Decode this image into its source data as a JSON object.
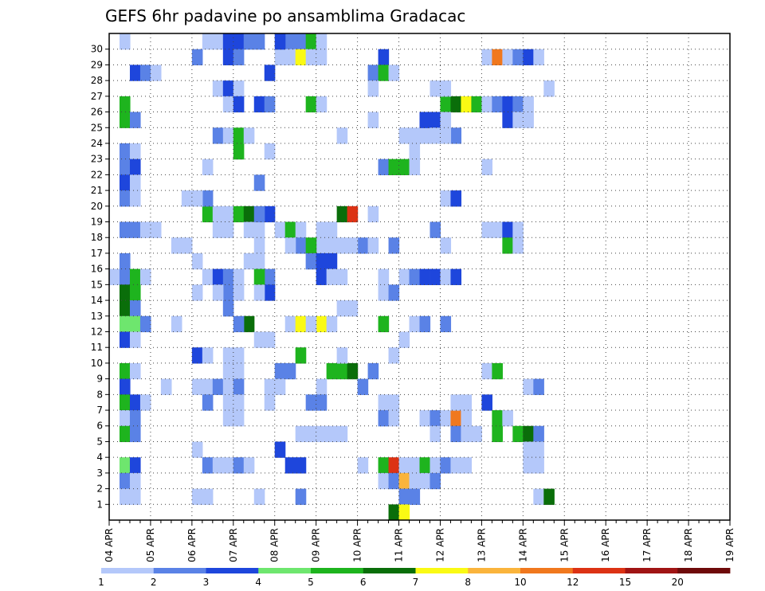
{
  "chart_data": {
    "type": "heatmap",
    "title": "GEFS 6hr padavine po ansamblima Gradacac",
    "x_tick_labels": [
      "04 APR",
      "05 APR",
      "06 APR",
      "07 APR",
      "08 APR",
      "09 APR",
      "10 APR",
      "11 APR",
      "12 APR",
      "13 APR",
      "14 APR",
      "15 APR",
      "16 APR",
      "17 APR",
      "18 APR",
      "19 APR"
    ],
    "y_tick_labels": [
      "1",
      "2",
      "3",
      "4",
      "5",
      "6",
      "7",
      "8",
      "9",
      "10",
      "11",
      "12",
      "13",
      "14",
      "15",
      "16",
      "17",
      "18",
      "19",
      "20",
      "21",
      "22",
      "23",
      "24",
      "25",
      "26",
      "27",
      "28",
      "29",
      "30"
    ],
    "y_range": [
      1,
      30
    ],
    "time_steps_per_day": 4,
    "grid": true,
    "legend": {
      "placement": "bottom",
      "labels": [
        "1",
        "2",
        "3",
        "4",
        "5",
        "6",
        "7",
        "8",
        "10",
        "12",
        "15",
        "20"
      ],
      "colors": [
        "#b4c8fa",
        "#5a82e6",
        "#1e46dc",
        "#6ee66e",
        "#1eb41e",
        "#0a6e0a",
        "#fafa14",
        "#fab43c",
        "#f0781e",
        "#dc3214",
        "#a01414",
        "#6e0a0a"
      ]
    },
    "cells_key": [
      "time_step",
      "member",
      "color_index"
    ],
    "cells": [
      [
        1,
        30,
        0
      ],
      [
        2,
        28,
        2
      ],
      [
        3,
        28,
        1
      ],
      [
        4,
        28,
        0
      ],
      [
        1,
        26,
        4
      ],
      [
        1,
        25,
        4
      ],
      [
        2,
        25,
        1
      ],
      [
        1,
        23,
        1
      ],
      [
        2,
        23,
        0
      ],
      [
        1,
        22,
        1
      ],
      [
        2,
        22,
        2
      ],
      [
        1,
        21,
        2
      ],
      [
        2,
        21,
        0
      ],
      [
        1,
        20,
        1
      ],
      [
        2,
        20,
        0
      ],
      [
        1,
        18,
        1
      ],
      [
        2,
        18,
        1
      ],
      [
        3,
        18,
        0
      ],
      [
        4,
        18,
        0
      ],
      [
        1,
        16,
        1
      ],
      [
        0,
        15,
        0
      ],
      [
        1,
        15,
        1
      ],
      [
        2,
        15,
        4
      ],
      [
        3,
        15,
        0
      ],
      [
        1,
        14,
        5
      ],
      [
        2,
        14,
        4
      ],
      [
        1,
        13,
        5
      ],
      [
        2,
        13,
        1
      ],
      [
        1,
        12,
        3
      ],
      [
        2,
        12,
        3
      ],
      [
        3,
        12,
        1
      ],
      [
        1,
        11,
        2
      ],
      [
        2,
        11,
        0
      ],
      [
        1,
        9,
        4
      ],
      [
        2,
        9,
        0
      ],
      [
        1,
        8,
        2
      ],
      [
        1,
        7,
        4
      ],
      [
        2,
        7,
        2
      ],
      [
        3,
        7,
        0
      ],
      [
        1,
        6,
        0
      ],
      [
        2,
        6,
        1
      ],
      [
        1,
        5,
        4
      ],
      [
        2,
        5,
        1
      ],
      [
        1,
        3,
        3
      ],
      [
        2,
        3,
        2
      ],
      [
        1,
        2,
        1
      ],
      [
        2,
        2,
        0
      ],
      [
        1,
        1,
        0
      ],
      [
        2,
        1,
        0
      ],
      [
        9,
        30,
        0
      ],
      [
        10,
        30,
        0
      ],
      [
        11,
        30,
        2
      ],
      [
        12,
        30,
        2
      ],
      [
        13,
        30,
        1
      ],
      [
        8,
        29,
        1
      ],
      [
        11,
        29,
        2
      ],
      [
        12,
        29,
        1
      ],
      [
        10,
        27,
        0
      ],
      [
        11,
        27,
        2
      ],
      [
        12,
        27,
        0
      ],
      [
        11,
        26,
        0
      ],
      [
        12,
        26,
        2
      ],
      [
        10,
        24,
        1
      ],
      [
        11,
        24,
        0
      ],
      [
        12,
        24,
        4
      ],
      [
        12,
        23,
        4
      ],
      [
        9,
        22,
        0
      ],
      [
        11,
        19,
        0
      ],
      [
        9,
        19,
        4
      ],
      [
        10,
        19,
        0
      ],
      [
        11,
        18,
        0
      ],
      [
        10,
        18,
        0
      ],
      [
        12,
        19,
        4
      ],
      [
        13,
        19,
        5
      ],
      [
        9,
        20,
        1
      ],
      [
        8,
        20,
        0
      ],
      [
        7,
        20,
        0
      ],
      [
        8,
        16,
        0
      ],
      [
        9,
        15,
        0
      ],
      [
        10,
        15,
        2
      ],
      [
        11,
        15,
        1
      ],
      [
        12,
        15,
        0
      ],
      [
        11,
        14,
        1
      ],
      [
        8,
        14,
        0
      ],
      [
        10,
        14,
        0
      ],
      [
        12,
        14,
        0
      ],
      [
        11,
        13,
        1
      ],
      [
        6,
        12,
        0
      ],
      [
        13,
        12,
        5
      ],
      [
        12,
        12,
        1
      ],
      [
        8,
        10,
        2
      ],
      [
        9,
        10,
        0
      ],
      [
        11,
        10,
        0
      ],
      [
        12,
        10,
        0
      ],
      [
        11,
        9,
        0
      ],
      [
        12,
        9,
        0
      ],
      [
        8,
        8,
        0
      ],
      [
        9,
        8,
        0
      ],
      [
        10,
        8,
        1
      ],
      [
        11,
        8,
        0
      ],
      [
        12,
        8,
        1
      ],
      [
        9,
        7,
        1
      ],
      [
        11,
        7,
        0
      ],
      [
        12,
        7,
        0
      ],
      [
        11,
        6,
        0
      ],
      [
        12,
        6,
        0
      ],
      [
        8,
        4,
        0
      ],
      [
        9,
        3,
        1
      ],
      [
        10,
        3,
        0
      ],
      [
        11,
        3,
        0
      ],
      [
        12,
        3,
        1
      ],
      [
        13,
        3,
        0
      ],
      [
        8,
        1,
        0
      ],
      [
        9,
        1,
        0
      ],
      [
        7,
        17,
        0
      ],
      [
        6,
        17,
        0
      ],
      [
        5,
        8,
        0
      ],
      [
        14,
        30,
        1
      ],
      [
        16,
        29,
        0
      ],
      [
        15,
        28,
        2
      ],
      [
        14,
        26,
        2
      ],
      [
        15,
        26,
        1
      ],
      [
        13,
        24,
        0
      ],
      [
        15,
        23,
        0
      ],
      [
        14,
        21,
        1
      ],
      [
        13,
        18,
        0
      ],
      [
        14,
        18,
        0
      ],
      [
        14,
        17,
        0
      ],
      [
        14,
        16,
        0
      ],
      [
        13,
        16,
        0
      ],
      [
        15,
        19,
        2
      ],
      [
        14,
        19,
        1
      ],
      [
        16,
        18,
        0
      ],
      [
        17,
        18,
        4
      ],
      [
        18,
        18,
        0
      ],
      [
        15,
        15,
        1
      ],
      [
        14,
        15,
        4
      ],
      [
        15,
        14,
        2
      ],
      [
        14,
        14,
        0
      ],
      [
        14,
        11,
        0
      ],
      [
        15,
        11,
        0
      ],
      [
        17,
        12,
        0
      ],
      [
        18,
        12,
        6
      ],
      [
        16,
        9,
        1
      ],
      [
        17,
        9,
        1
      ],
      [
        15,
        8,
        0
      ],
      [
        16,
        8,
        0
      ],
      [
        15,
        7,
        0
      ],
      [
        16,
        4,
        2
      ],
      [
        17,
        3,
        2
      ],
      [
        18,
        3,
        2
      ],
      [
        14,
        1,
        0
      ],
      [
        18,
        1,
        1
      ],
      [
        18,
        17,
        1
      ],
      [
        19,
        16,
        0
      ],
      [
        17,
        17,
        0
      ],
      [
        20,
        17,
        0
      ],
      [
        21,
        17,
        0
      ],
      [
        21,
        18,
        0
      ],
      [
        20,
        18,
        0
      ],
      [
        19,
        17,
        4
      ],
      [
        19,
        16,
        1
      ],
      [
        20,
        16,
        2
      ],
      [
        21,
        16,
        2
      ],
      [
        20,
        15,
        2
      ],
      [
        21,
        15,
        0
      ],
      [
        22,
        15,
        0
      ],
      [
        22,
        17,
        0
      ],
      [
        20,
        12,
        6
      ],
      [
        19,
        12,
        0
      ],
      [
        18,
        10,
        4
      ],
      [
        21,
        9,
        4
      ],
      [
        20,
        8,
        0
      ],
      [
        19,
        7,
        1
      ],
      [
        20,
        7,
        1
      ],
      [
        18,
        5,
        0
      ],
      [
        19,
        5,
        0
      ],
      [
        20,
        5,
        0
      ],
      [
        21,
        5,
        0
      ],
      [
        22,
        5,
        0
      ],
      [
        24,
        3,
        0
      ],
      [
        17,
        30,
        1
      ],
      [
        18,
        30,
        1
      ],
      [
        19,
        30,
        4
      ],
      [
        20,
        30,
        0
      ],
      [
        16,
        30,
        2
      ],
      [
        17,
        29,
        0
      ],
      [
        18,
        29,
        6
      ],
      [
        19,
        29,
        0
      ],
      [
        20,
        29,
        0
      ],
      [
        19,
        26,
        4
      ],
      [
        20,
        26,
        0
      ],
      [
        22,
        24,
        0
      ],
      [
        24,
        17,
        1
      ],
      [
        25,
        17,
        0
      ],
      [
        23,
        17,
        0
      ],
      [
        22,
        19,
        5
      ],
      [
        23,
        19,
        9
      ],
      [
        25,
        19,
        0
      ],
      [
        22,
        9,
        4
      ],
      [
        23,
        9,
        5
      ],
      [
        22,
        10,
        0
      ],
      [
        21,
        12,
        0
      ],
      [
        25,
        9,
        1
      ],
      [
        24,
        8,
        1
      ],
      [
        22,
        13,
        0
      ],
      [
        23,
        13,
        0
      ],
      [
        26,
        14,
        0
      ],
      [
        27,
        14,
        1
      ],
      [
        26,
        15,
        0
      ],
      [
        26,
        29,
        2
      ],
      [
        25,
        28,
        1
      ],
      [
        26,
        28,
        4
      ],
      [
        27,
        28,
        0
      ],
      [
        25,
        27,
        0
      ],
      [
        25,
        25,
        0
      ],
      [
        27,
        17,
        1
      ],
      [
        26,
        12,
        4
      ],
      [
        26,
        3,
        4
      ],
      [
        27,
        3,
        9
      ],
      [
        28,
        3,
        0
      ],
      [
        29,
        3,
        0
      ],
      [
        30,
        3,
        4
      ],
      [
        31,
        3,
        0
      ],
      [
        26,
        2,
        0
      ],
      [
        27,
        2,
        1
      ],
      [
        28,
        2,
        7
      ],
      [
        29,
        2,
        0
      ],
      [
        28,
        1,
        1
      ],
      [
        29,
        1,
        1
      ],
      [
        27,
        0,
        5
      ],
      [
        28,
        0,
        6
      ],
      [
        26,
        7,
        0
      ],
      [
        27,
        7,
        0
      ],
      [
        26,
        6,
        1
      ],
      [
        27,
        6,
        0
      ],
      [
        27,
        10,
        0
      ],
      [
        28,
        11,
        0
      ],
      [
        29,
        12,
        0
      ],
      [
        28,
        15,
        0
      ],
      [
        29,
        15,
        1
      ],
      [
        30,
        15,
        2
      ],
      [
        31,
        15,
        0
      ],
      [
        26,
        22,
        1
      ],
      [
        27,
        22,
        4
      ],
      [
        28,
        22,
        4
      ],
      [
        29,
        22,
        0
      ],
      [
        28,
        24,
        0
      ],
      [
        29,
        24,
        0
      ],
      [
        30,
        24,
        0
      ],
      [
        29,
        23,
        0
      ],
      [
        30,
        25,
        2
      ],
      [
        31,
        25,
        2
      ],
      [
        32,
        26,
        4
      ],
      [
        33,
        26,
        5
      ],
      [
        34,
        26,
        6
      ],
      [
        35,
        26,
        4
      ],
      [
        36,
        26,
        0
      ],
      [
        37,
        26,
        1
      ],
      [
        38,
        26,
        2
      ],
      [
        39,
        26,
        1
      ],
      [
        40,
        26,
        0
      ],
      [
        32,
        25,
        0
      ],
      [
        33,
        24,
        1
      ],
      [
        32,
        24,
        0
      ],
      [
        31,
        24,
        0
      ],
      [
        31,
        27,
        0
      ],
      [
        32,
        27,
        0
      ],
      [
        36,
        29,
        0
      ],
      [
        37,
        29,
        8
      ],
      [
        38,
        29,
        0
      ],
      [
        39,
        29,
        1
      ],
      [
        40,
        29,
        2
      ],
      [
        41,
        29,
        0
      ],
      [
        38,
        25,
        2
      ],
      [
        39,
        25,
        0
      ],
      [
        40,
        25,
        0
      ],
      [
        36,
        22,
        0
      ],
      [
        32,
        20,
        0
      ],
      [
        33,
        20,
        2
      ],
      [
        31,
        18,
        1
      ],
      [
        32,
        17,
        0
      ],
      [
        36,
        18,
        0
      ],
      [
        37,
        18,
        0
      ],
      [
        38,
        18,
        2
      ],
      [
        39,
        18,
        0
      ],
      [
        38,
        17,
        4
      ],
      [
        39,
        17,
        0
      ],
      [
        30,
        12,
        1
      ],
      [
        32,
        12,
        1
      ],
      [
        31,
        15,
        2
      ],
      [
        32,
        15,
        0
      ],
      [
        30,
        6,
        0
      ],
      [
        31,
        6,
        1
      ],
      [
        32,
        6,
        0
      ],
      [
        33,
        6,
        8
      ],
      [
        34,
        6,
        0
      ],
      [
        31,
        5,
        0
      ],
      [
        33,
        5,
        1
      ],
      [
        34,
        5,
        0
      ],
      [
        35,
        5,
        0
      ],
      [
        36,
        7,
        2
      ],
      [
        33,
        7,
        0
      ],
      [
        34,
        7,
        0
      ],
      [
        37,
        6,
        4
      ],
      [
        38,
        6,
        0
      ],
      [
        37,
        5,
        4
      ],
      [
        39,
        5,
        4
      ],
      [
        40,
        5,
        5
      ],
      [
        41,
        5,
        1
      ],
      [
        40,
        4,
        0
      ],
      [
        41,
        4,
        0
      ],
      [
        32,
        3,
        1
      ],
      [
        33,
        3,
        0
      ],
      [
        34,
        3,
        0
      ],
      [
        40,
        3,
        0
      ],
      [
        41,
        3,
        0
      ],
      [
        40,
        8,
        0
      ],
      [
        41,
        8,
        1
      ],
      [
        36,
        9,
        0
      ],
      [
        37,
        9,
        4
      ],
      [
        42,
        27,
        0
      ],
      [
        41,
        1,
        0
      ],
      [
        42,
        1,
        5
      ],
      [
        30,
        2,
        0
      ],
      [
        31,
        2,
        1
      ],
      [
        33,
        15,
        2
      ]
    ]
  }
}
